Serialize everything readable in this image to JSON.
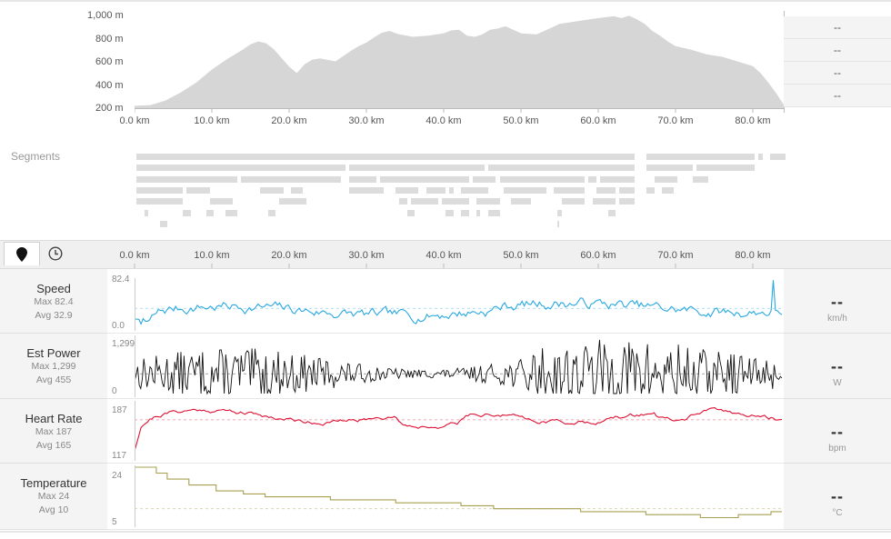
{
  "elevation": {
    "y_ticks": [
      "1,000 m",
      "800 m",
      "600 m",
      "400 m",
      "200 m"
    ],
    "x_ticks": [
      "0.0 km",
      "10.0 km",
      "20.0 km",
      "30.0 km",
      "40.0 km",
      "50.0 km",
      "60.0 km",
      "70.0 km",
      "80.0 km"
    ],
    "fill_color": "#d6d6d6",
    "readouts": [
      "--",
      "--",
      "--",
      "--"
    ]
  },
  "chart_data": {
    "type": "area",
    "xlabel": "",
    "ylabel": "",
    "x_unit": "km",
    "y_unit": "m",
    "xlim": [
      0,
      84
    ],
    "ylim": [
      200,
      1000
    ],
    "x": [
      0,
      2,
      4,
      6,
      8,
      10,
      12,
      14,
      15,
      16,
      17,
      18,
      19,
      20,
      21,
      22,
      23,
      24,
      26,
      28,
      29,
      30,
      31,
      32,
      33,
      34,
      36,
      38,
      40,
      41,
      42,
      43,
      44,
      45,
      46,
      47,
      48,
      50,
      52,
      54,
      55,
      56,
      58,
      60,
      62,
      63,
      64,
      65,
      66,
      67,
      68,
      69,
      70,
      72,
      74,
      75,
      76,
      78,
      80,
      81,
      82,
      83,
      84
    ],
    "series": [
      {
        "values": [
          220,
          225,
          265,
          335,
          420,
          530,
          620,
          700,
          745,
          770,
          755,
          705,
          630,
          555,
          500,
          575,
          615,
          625,
          600,
          690,
          730,
          760,
          805,
          845,
          860,
          835,
          810,
          820,
          840,
          865,
          870,
          820,
          810,
          830,
          870,
          880,
          900,
          840,
          830,
          890,
          920,
          930,
          950,
          970,
          985,
          970,
          990,
          960,
          920,
          860,
          820,
          770,
          730,
          700,
          660,
          650,
          640,
          600,
          560,
          500,
          420,
          330,
          230
        ]
      }
    ]
  },
  "segments": {
    "title": "Segments",
    "bar_color": "#dcdcdc"
  },
  "toolbar": {
    "distance_icon": "map-pin-icon",
    "time_icon": "clock-icon",
    "x_ticks": [
      "0.0 km",
      "10.0 km",
      "20.0 km",
      "30.0 km",
      "40.0 km",
      "50.0 km",
      "60.0 km",
      "70.0 km",
      "80.0 km"
    ]
  },
  "metrics": [
    {
      "key": "speed",
      "name": "Speed",
      "max_label": "Max 82.4",
      "avg_label": "Avg 32.9",
      "value": "--",
      "unit": "km/h",
      "y_max": "82.4",
      "y_min": "0.0",
      "max": 82.4,
      "min": 0,
      "avg": 32.9,
      "color": "#29a8e0"
    },
    {
      "key": "power",
      "name": "Est Power",
      "max_label": "Max 1,299",
      "avg_label": "Avg 455",
      "value": "--",
      "unit": "W",
      "y_max": "1,299",
      "y_min": "0",
      "max": 1299,
      "min": 0,
      "avg": 455,
      "color": "#111111"
    },
    {
      "key": "hr",
      "name": "Heart Rate",
      "max_label": "Max 187",
      "avg_label": "Avg 165",
      "value": "--",
      "unit": "bpm",
      "y_max": "187",
      "y_min": "117",
      "max": 187,
      "min": 117,
      "avg": 165,
      "color": "#dd1133"
    },
    {
      "key": "temp",
      "name": "Temperature",
      "max_label": "Max 24",
      "avg_label": "Avg 10",
      "value": "--",
      "unit": "°C",
      "y_max": "24",
      "y_min": "5",
      "max": 24,
      "min": 5,
      "avg": 10,
      "color": "#a8a050"
    }
  ]
}
